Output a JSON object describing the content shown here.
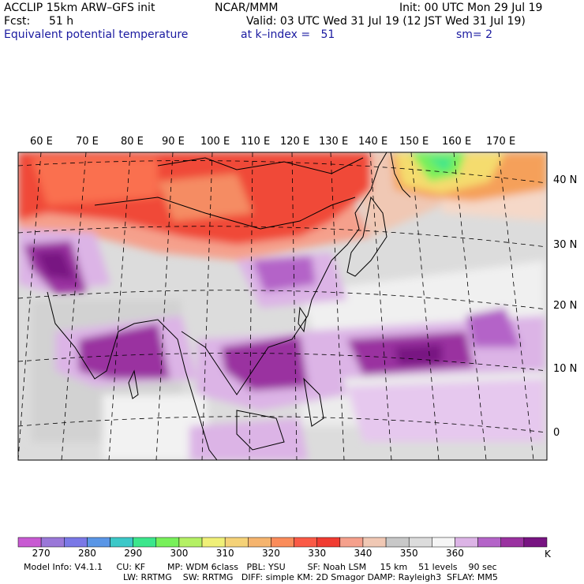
{
  "header": {
    "model": "ACCLIP 15km ARW–GFS init",
    "org": "NCAR/MMM",
    "init": "Init: 00 UTC Mon 29 Jul 19",
    "fcst_label": "Fcst:",
    "fcst_value": "51 h",
    "valid": "Valid: 03 UTC Wed 31 Jul 19 (12 JST Wed 31 Jul 19)",
    "field": "Equivalent potential temperature",
    "level": "at k–index =   51",
    "smooth": "sm= 2"
  },
  "map": {
    "lon_labels": [
      "60 E",
      "70 E",
      "80 E",
      "90 E",
      "100 E",
      "110 E",
      "120 E",
      "130 E",
      "140 E",
      "150 E",
      "160 E",
      "170 E"
    ],
    "lat_labels": [
      "40 N",
      "30 N",
      "20 N",
      "10 N",
      "0"
    ]
  },
  "colorbar": {
    "unit": "K",
    "tick_labels": [
      "270",
      "280",
      "290",
      "300",
      "310",
      "320",
      "330",
      "340",
      "350",
      "360"
    ],
    "colors": [
      "#c85ad2",
      "#9a78d8",
      "#7a78e6",
      "#5a96e6",
      "#3cc8c8",
      "#3ce68c",
      "#78f05a",
      "#b4f064",
      "#f0f078",
      "#f5d278",
      "#f5b46e",
      "#fa8c5a",
      "#fa5a46",
      "#f03c32",
      "#f5a08c",
      "#f0c8b4",
      "#c8c8c8",
      "#dcdcdc",
      "#f5f5f5",
      "#dcb4e6",
      "#b464c8",
      "#9a32a0",
      "#781482"
    ]
  },
  "footer": {
    "line1": "Model Info: V4.1.1     CU: KF        MP: WDM 6class   PBL: YSU        SF: Noah LSM     15 km    51 levels    90 sec",
    "line2": "LW: RRTMG    SW: RRTMG   DIFF: simple KM: 2D Smagor DAMP: Rayleigh3  SFLAY: MM5"
  }
}
